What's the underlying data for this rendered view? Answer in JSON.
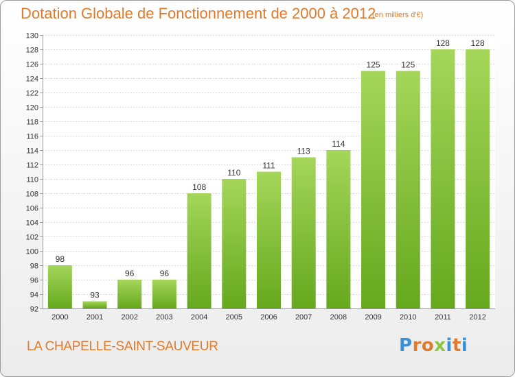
{
  "header": {
    "title": "Dotation Globale de Fonctionnement de 2000 à 2012",
    "unit": "(en milliers d'€)"
  },
  "footer": {
    "city": "LA CHAPELLE-SAINT-SAUVEUR",
    "logo_letters": [
      "P",
      "r",
      "o",
      "x",
      "i",
      "t",
      "i"
    ],
    "logo_colors": [
      "#3a8fd6",
      "#e07a2c",
      "#e07a2c",
      "#8cc63f",
      "#3a8fd6",
      "#e07a2c",
      "#3a8fd6"
    ]
  },
  "chart_data": {
    "type": "bar",
    "title": "Dotation Globale de Fonctionnement de 2000 à 2012",
    "subtitle": "(en milliers d'€)",
    "categories": [
      "2000",
      "2001",
      "2002",
      "2003",
      "2004",
      "2005",
      "2006",
      "2007",
      "2008",
      "2009",
      "2010",
      "2011",
      "2012"
    ],
    "values": [
      98,
      93,
      96,
      96,
      108,
      110,
      111,
      113,
      114,
      125,
      125,
      128,
      128
    ],
    "value_labels": [
      "98",
      "93",
      "96",
      "96",
      "108",
      "110",
      "111",
      "113",
      "114",
      "125",
      "125",
      "128",
      "128"
    ],
    "yticks": [
      "92",
      "94",
      "96",
      "98",
      "100",
      "102",
      "104",
      "106",
      "108",
      "110",
      "112",
      "114",
      "116",
      "118",
      "120",
      "122",
      "124",
      "126",
      "128",
      "130"
    ],
    "ylim": [
      92,
      130
    ],
    "grid": true,
    "bar_color": "#8cc63f",
    "bar_color_top": "#a4d65a",
    "bar_color_bottom": "#66a81e"
  }
}
